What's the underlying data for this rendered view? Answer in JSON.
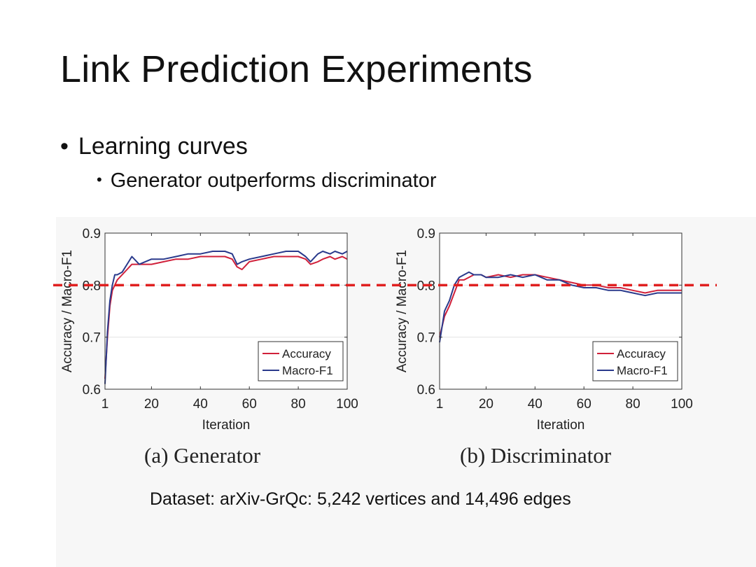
{
  "slide": {
    "title": "Link Prediction Experiments",
    "bullet_1": "Learning curves",
    "bullet_2": "Generator outperforms discriminator",
    "bullet_char": "•",
    "dataset_note": "Dataset: arXiv-GrQc: 5,242 vertices and 14,496 edges"
  },
  "colors": {
    "accuracy": "#d0203a",
    "macro_f1": "#2a3a8c",
    "reference": "#e02020"
  },
  "chart_data": [
    {
      "type": "line",
      "caption": "(a) Generator",
      "xlabel": "Iteration",
      "ylabel": "Accuracy / Macro-F1",
      "xlim": [
        1,
        100
      ],
      "ylim": [
        0.6,
        0.9
      ],
      "xticks": [
        1,
        20,
        40,
        60,
        80,
        100
      ],
      "yticks": [
        0.6,
        0.7,
        0.8,
        0.9
      ],
      "ytick_labels": [
        "0.6",
        "0.7",
        "0.8",
        "0.9"
      ],
      "grid": true,
      "legend": "bottom-right",
      "reference_line": 0.8,
      "series": [
        {
          "name": "Accuracy",
          "x": [
            1,
            2,
            3,
            4,
            5,
            6,
            8,
            10,
            12,
            15,
            20,
            25,
            30,
            35,
            40,
            45,
            50,
            53,
            55,
            57,
            60,
            65,
            70,
            75,
            80,
            83,
            85,
            88,
            90,
            93,
            95,
            98,
            100
          ],
          "values": [
            0.62,
            0.7,
            0.76,
            0.79,
            0.8,
            0.81,
            0.82,
            0.83,
            0.84,
            0.84,
            0.84,
            0.845,
            0.85,
            0.85,
            0.855,
            0.855,
            0.855,
            0.85,
            0.835,
            0.83,
            0.845,
            0.85,
            0.855,
            0.855,
            0.855,
            0.85,
            0.84,
            0.845,
            0.85,
            0.855,
            0.85,
            0.855,
            0.85
          ]
        },
        {
          "name": "Macro-F1",
          "x": [
            1,
            2,
            3,
            4,
            5,
            6,
            8,
            10,
            12,
            15,
            20,
            25,
            30,
            35,
            40,
            45,
            50,
            53,
            55,
            57,
            60,
            65,
            70,
            75,
            80,
            83,
            85,
            88,
            90,
            93,
            95,
            98,
            100
          ],
          "values": [
            0.61,
            0.71,
            0.77,
            0.8,
            0.82,
            0.82,
            0.825,
            0.84,
            0.855,
            0.84,
            0.85,
            0.85,
            0.855,
            0.86,
            0.86,
            0.865,
            0.865,
            0.86,
            0.84,
            0.845,
            0.85,
            0.855,
            0.86,
            0.865,
            0.865,
            0.855,
            0.845,
            0.86,
            0.865,
            0.86,
            0.865,
            0.86,
            0.865
          ]
        }
      ]
    },
    {
      "type": "line",
      "caption": "(b) Discriminator",
      "xlabel": "Iteration",
      "ylabel": "Accuracy / Macro-F1",
      "xlim": [
        1,
        100
      ],
      "ylim": [
        0.6,
        0.9
      ],
      "xticks": [
        1,
        20,
        40,
        60,
        80,
        100
      ],
      "yticks": [
        0.6,
        0.7,
        0.8,
        0.9
      ],
      "ytick_labels": [
        "0.6",
        "0.7",
        "0.8",
        "0.9"
      ],
      "grid": true,
      "legend": "bottom-right",
      "reference_line": 0.8,
      "series": [
        {
          "name": "Accuracy",
          "x": [
            1,
            3,
            5,
            7,
            9,
            11,
            13,
            15,
            18,
            20,
            25,
            30,
            35,
            40,
            45,
            50,
            55,
            60,
            65,
            70,
            75,
            80,
            85,
            90,
            95,
            100
          ],
          "values": [
            0.7,
            0.74,
            0.76,
            0.785,
            0.81,
            0.81,
            0.815,
            0.82,
            0.82,
            0.815,
            0.82,
            0.815,
            0.82,
            0.82,
            0.815,
            0.81,
            0.805,
            0.8,
            0.8,
            0.795,
            0.795,
            0.79,
            0.785,
            0.79,
            0.79,
            0.79
          ]
        },
        {
          "name": "Macro-F1",
          "x": [
            1,
            3,
            5,
            7,
            9,
            11,
            13,
            15,
            18,
            20,
            25,
            30,
            35,
            40,
            45,
            50,
            55,
            60,
            65,
            70,
            75,
            80,
            85,
            90,
            95,
            100
          ],
          "values": [
            0.69,
            0.75,
            0.77,
            0.8,
            0.815,
            0.82,
            0.825,
            0.82,
            0.82,
            0.815,
            0.815,
            0.82,
            0.815,
            0.82,
            0.81,
            0.81,
            0.8,
            0.795,
            0.795,
            0.79,
            0.79,
            0.785,
            0.78,
            0.785,
            0.785,
            0.785
          ]
        }
      ]
    }
  ]
}
